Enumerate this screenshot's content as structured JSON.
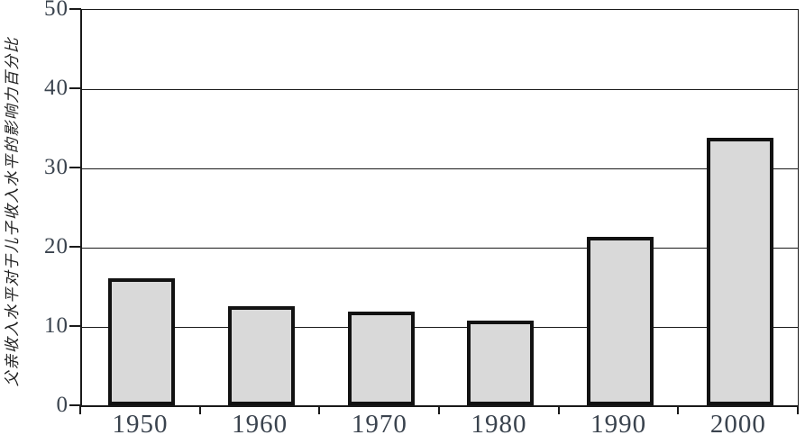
{
  "chart_data": {
    "type": "bar",
    "categories": [
      "1950",
      "1960",
      "1970",
      "1980",
      "1990",
      "2000"
    ],
    "values": [
      16,
      12.5,
      11.8,
      10.7,
      21.2,
      33.7
    ],
    "title": "",
    "xlabel": "",
    "ylabel": "父亲收入水平对于儿子收入水平的影响力百分比",
    "ylim": [
      0,
      50
    ],
    "yticks": [
      0,
      10,
      20,
      30,
      40,
      50
    ],
    "grid": true,
    "legend_position": "none",
    "bar_fill_color": "#d9d9d9",
    "bar_border_color": "#121212",
    "axis_color": "#1a1a1a",
    "tick_label_color": "#3a434e"
  }
}
